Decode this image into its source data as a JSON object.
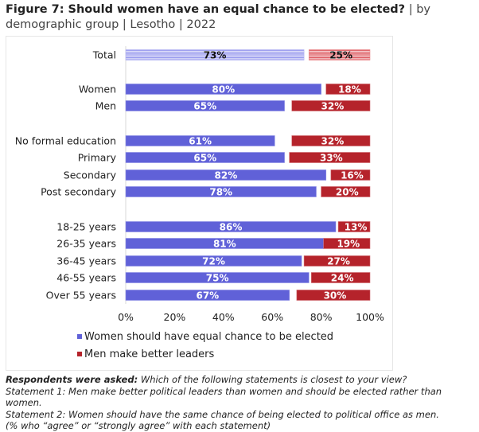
{
  "title": {
    "bold": "Figure 7: Should women have an equal chance to be elected?",
    "rest": " | by demographic group | Lesotho | 2022"
  },
  "chart_data": {
    "type": "bar",
    "orientation": "horizontal-stacked-diverging",
    "categories": [
      "Total",
      "Women",
      "Men",
      "No formal education",
      "Primary",
      "Secondary",
      "Post secondary",
      "18-25 years",
      "26-35 years",
      "36-45 years",
      "46-55 years",
      "Over 55 years"
    ],
    "groups": [
      [
        "Total"
      ],
      [
        "Women",
        "Men"
      ],
      [
        "No formal education",
        "Primary",
        "Secondary",
        "Post secondary"
      ],
      [
        "18-25 years",
        "26-35 years",
        "36-45 years",
        "46-55 years",
        "Over 55 years"
      ]
    ],
    "series": [
      {
        "name": "Women should have equal chance to be elected",
        "color": "#6061d8",
        "total_color": "#9b9cf0",
        "values": [
          73,
          80,
          65,
          61,
          65,
          82,
          78,
          86,
          81,
          72,
          75,
          67
        ],
        "align": "left"
      },
      {
        "name": "Men make better leaders",
        "color": "#b5232b",
        "total_color": "#e05a60",
        "values": [
          25,
          18,
          32,
          32,
          33,
          16,
          20,
          13,
          19,
          27,
          24,
          30
        ],
        "align": "right"
      }
    ],
    "xticks": [
      "0%",
      "20%",
      "40%",
      "60%",
      "80%",
      "100%"
    ],
    "xlim": [
      0,
      100
    ],
    "legend_position": "bottom-left",
    "grid": false,
    "title": "Should women have an equal chance to be elected?"
  },
  "footnote": {
    "lead": "Respondents were asked:",
    "question": " Which of the following statements is closest to your view?",
    "line2": "Statement 1: Men make better political leaders than women and should be elected rather than women.",
    "line3": "Statement 2: Women should have the same chance of being elected to political office as men.",
    "line4": "(% who “agree” or “strongly agree” with each statement)"
  }
}
